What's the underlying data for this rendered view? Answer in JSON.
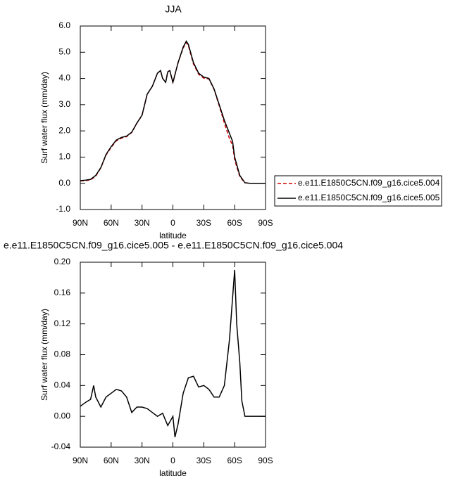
{
  "chart_data": [
    {
      "type": "line",
      "title": "JJA",
      "x_label": "latitude",
      "y_label": "Surf water flux (mm/day)",
      "xlim": [
        90,
        -90
      ],
      "xticks": [
        {
          "value": 90,
          "label": "90N"
        },
        {
          "value": 60,
          "label": "60N"
        },
        {
          "value": 30,
          "label": "30N"
        },
        0,
        {
          "value": -30,
          "label": "30S"
        },
        {
          "value": -60,
          "label": "60S"
        },
        {
          "value": -90,
          "label": "90S"
        }
      ],
      "ylim": [
        -1,
        6
      ],
      "yticks": [
        {
          "value": -1,
          "label": "-1.0"
        },
        {
          "value": 0,
          "label": "0.0"
        },
        {
          "value": 1,
          "label": "1.0"
        },
        {
          "value": 2,
          "label": "2.0"
        },
        {
          "value": 3,
          "label": "3.0"
        },
        {
          "value": 4,
          "label": "4.0"
        },
        {
          "value": 5,
          "label": "5.0"
        },
        {
          "value": 6,
          "label": "6.0"
        }
      ],
      "legend": "right",
      "x": [
        90,
        85,
        80,
        75,
        70,
        65,
        60,
        55,
        50,
        45,
        40,
        35,
        30,
        25,
        20,
        15,
        12,
        10,
        7,
        5,
        3,
        0,
        -5,
        -10,
        -13,
        -15,
        -20,
        -25,
        -30,
        -35,
        -40,
        -45,
        -50,
        -55,
        -58,
        -60,
        -65,
        -70,
        -75,
        -80,
        -85,
        -90
      ],
      "series": [
        {
          "name": "e.e11.E1850C5CN.f09_g16.cice5.004",
          "color": "#d00000",
          "line_style": "dashed",
          "values": [
            0.09,
            0.1,
            0.13,
            0.27,
            0.59,
            1.08,
            1.37,
            1.62,
            1.72,
            1.78,
            1.94,
            2.29,
            2.59,
            3.39,
            3.7,
            4.2,
            4.3,
            4.0,
            3.86,
            4.26,
            4.3,
            3.83,
            4.6,
            5.16,
            5.37,
            5.25,
            4.55,
            4.16,
            4.01,
            3.98,
            3.58,
            2.96,
            2.3,
            1.7,
            1.45,
            0.9,
            0.25,
            0.02,
            0,
            0,
            0,
            0
          ]
        },
        {
          "name": "e.e11.E1850C5CN.f09_g16.cice5.005",
          "color": "#000000",
          "line_style": "solid",
          "values": [
            0.1,
            0.12,
            0.15,
            0.3,
            0.6,
            1.1,
            1.4,
            1.65,
            1.75,
            1.8,
            1.95,
            2.3,
            2.6,
            3.4,
            3.7,
            4.2,
            4.3,
            4.0,
            3.85,
            4.25,
            4.3,
            3.85,
            4.6,
            5.2,
            5.42,
            5.3,
            4.6,
            4.2,
            4.05,
            4.0,
            3.6,
            3.0,
            2.4,
            1.9,
            1.6,
            1.0,
            0.3,
            0.02,
            0,
            0,
            0,
            0
          ]
        }
      ]
    },
    {
      "type": "line",
      "title": "e.e11.E1850C5CN.f09_g16.cice5.005 - e.e11.E1850C5CN.f09_g16.cice5.004",
      "x_label": "latitude",
      "y_label": "Surf water flux (mm/day)",
      "xlim": [
        90,
        -90
      ],
      "xticks": [
        {
          "value": 90,
          "label": "90N"
        },
        {
          "value": 60,
          "label": "60N"
        },
        {
          "value": 30,
          "label": "30N"
        },
        0,
        {
          "value": -30,
          "label": "30S"
        },
        {
          "value": -60,
          "label": "60S"
        },
        {
          "value": -90,
          "label": "90S"
        }
      ],
      "ylim": [
        -0.04,
        0.2
      ],
      "yticks": [
        -0.04,
        {
          "value": 0,
          "label": "0.00"
        },
        0.04,
        0.08,
        0.12,
        0.16,
        {
          "value": 0.2,
          "label": "0.20"
        }
      ],
      "x": [
        90,
        85,
        80,
        77,
        75,
        70,
        65,
        60,
        55,
        50,
        45,
        40,
        35,
        30,
        25,
        20,
        15,
        10,
        5,
        0,
        -2,
        -5,
        -10,
        -15,
        -20,
        -25,
        -30,
        -35,
        -40,
        -45,
        -50,
        -55,
        -60,
        -62,
        -65,
        -67,
        -70,
        -75,
        -80,
        -85,
        -90
      ],
      "series": [
        {
          "color": "#000000",
          "line_style": "solid",
          "values": [
            0.013,
            0.018,
            0.022,
            0.04,
            0.025,
            0.012,
            0.025,
            0.03,
            0.035,
            0.033,
            0.025,
            0.005,
            0.012,
            0.012,
            0.01,
            0.005,
            0.0,
            0.004,
            -0.012,
            0.0,
            -0.027,
            -0.01,
            0.03,
            0.05,
            0.052,
            0.038,
            0.04,
            0.035,
            0.025,
            0.025,
            0.04,
            0.1,
            0.19,
            0.12,
            0.07,
            0.02,
            0,
            0,
            0,
            0,
            0
          ]
        }
      ]
    }
  ]
}
